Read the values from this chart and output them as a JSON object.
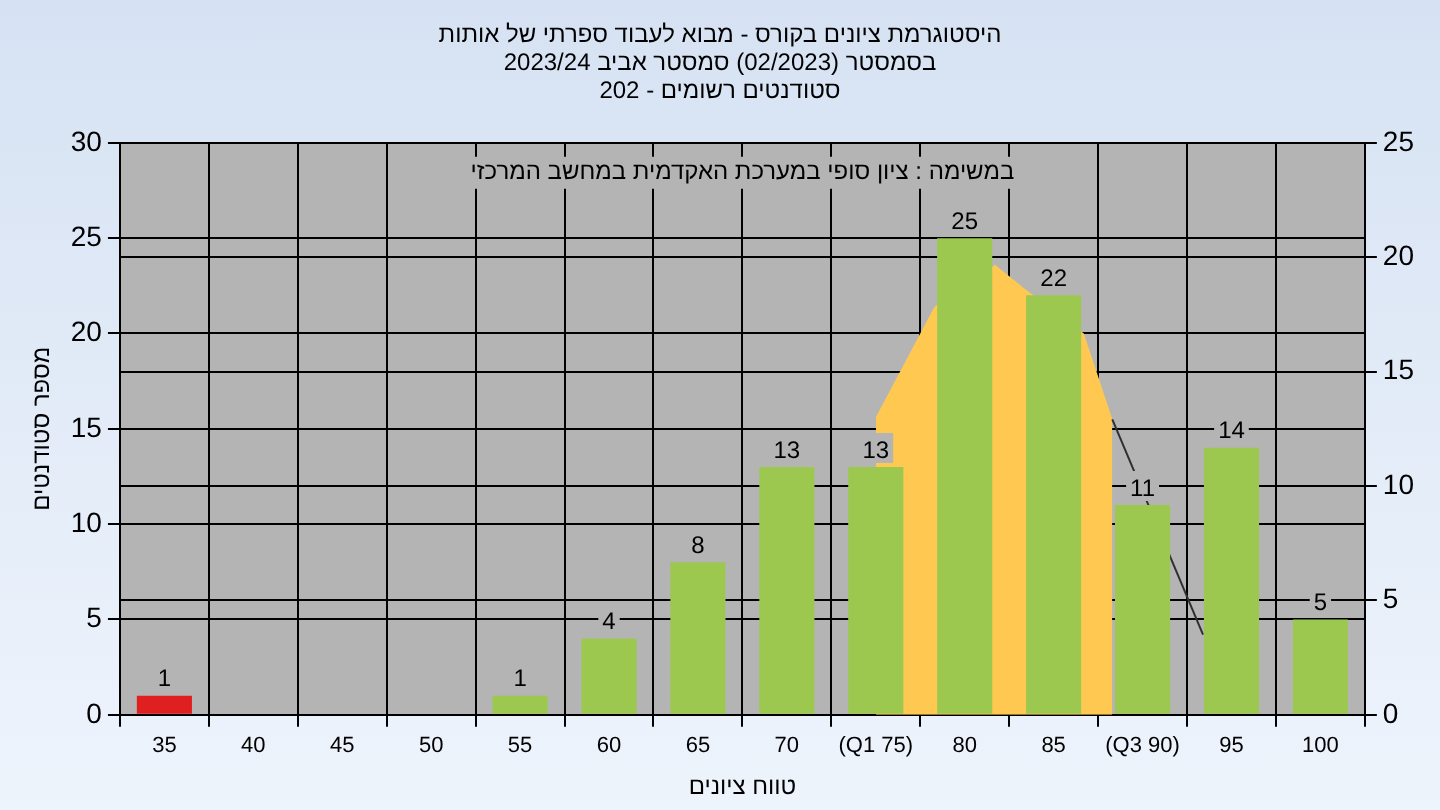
{
  "chart_data": {
    "type": "bar",
    "title": [
      "היסטוגרמת ציונים בקורס - מבוא לעבוד ספרתי של אותות",
      "בסמסטר  (02/2023)  סמסטר אביב 2023/24",
      "סטודנטים רשומים - 202"
    ],
    "annotations": [
      "במשימה : ציון סופי במערכת האקדמית במחשב המרכזי"
    ],
    "xlabel": "טווח ציונים",
    "ylabel": "מספר סטודנטים",
    "x": [
      35,
      40,
      45,
      50,
      55,
      60,
      65,
      70,
      75,
      80,
      85,
      90,
      95,
      100
    ],
    "series": [
      {
        "type": "area",
        "color": "#ffc850",
        "x": [
          75,
          78.3,
          81.7,
          83.3,
          86.7,
          88.3
        ],
        "values": [
          15.6,
          21.4,
          23.6,
          22.4,
          20,
          15.5
        ]
      },
      {
        "type": "line",
        "color": "#303030",
        "x": [
          88.3,
          93.4
        ],
        "values": [
          15.5,
          4.2
        ]
      },
      {
        "colors": [
          "#e02020",
          "#9cc850",
          "#9cc850",
          "#9cc850",
          "#9cc850",
          "#9cc850",
          "#9cc850",
          "#9cc850",
          "#9cc850",
          "#9cc850",
          "#9cc850",
          "#9cc850",
          "#9cc850",
          "#9cc850"
        ],
        "values": [
          1,
          0,
          0,
          0,
          1,
          4,
          8,
          13,
          13,
          25,
          22,
          11,
          14,
          5
        ],
        "value_labels": [
          "1",
          null,
          null,
          null,
          "1",
          "4",
          "8",
          "13",
          "13",
          "25",
          "22",
          "11",
          "14",
          "5"
        ]
      }
    ],
    "xlim": [
      32.5,
      102.5
    ],
    "xticks": [
      35,
      40,
      45,
      50,
      55,
      60,
      65,
      70,
      {
        "value": 75,
        "label": "(Q1 75)"
      },
      80,
      85,
      {
        "value": 90,
        "label": "(Q3 90)"
      },
      95,
      100
    ],
    "ylim": [
      0,
      30
    ],
    "yticks": [
      0,
      5,
      10,
      15,
      20,
      25,
      30
    ],
    "y2lim": [
      0,
      25
    ],
    "y2ticks": [
      0,
      5,
      10,
      15,
      20,
      25
    ],
    "grid": true,
    "legend": false
  }
}
